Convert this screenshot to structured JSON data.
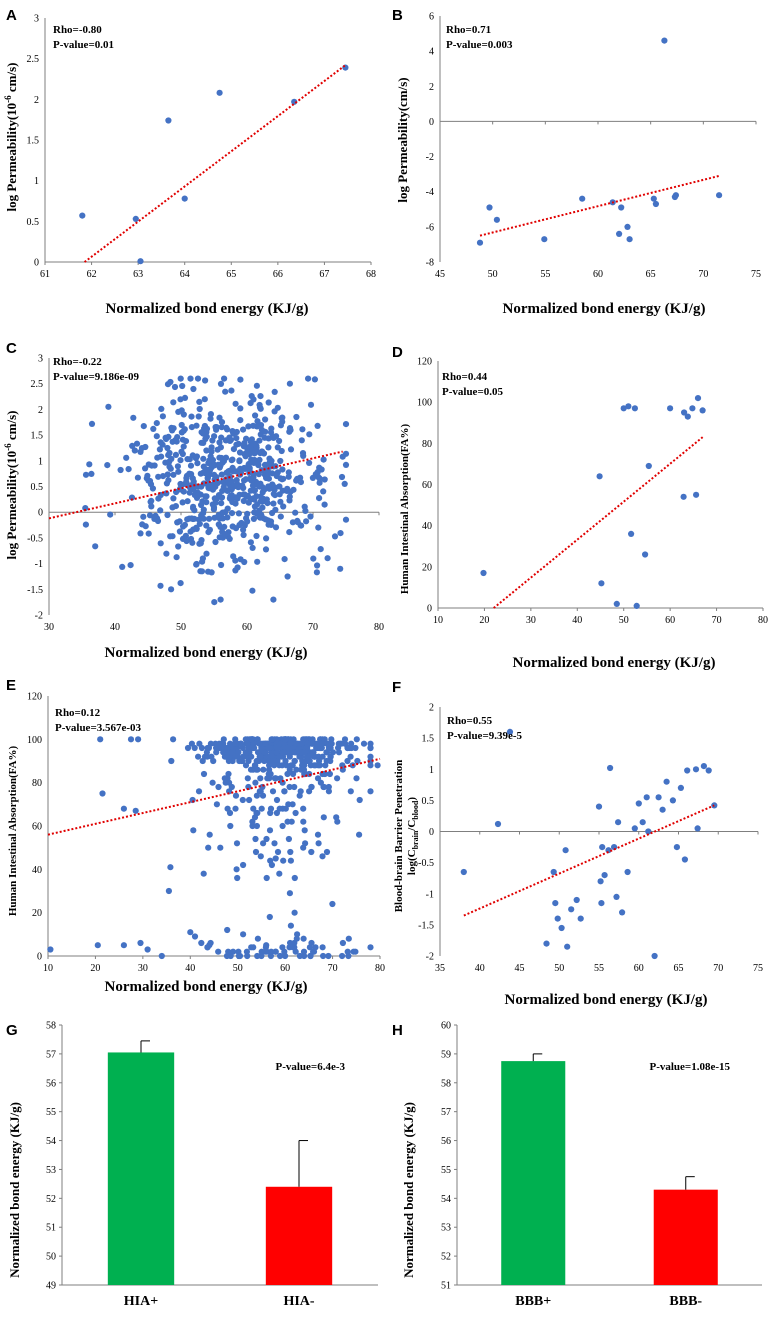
{
  "figure": {
    "panels": [
      {
        "key": "A",
        "chart_data": {
          "type": "scatter",
          "panel_label": "A",
          "xlabel": "Normalized bond energy (KJ/g)",
          "ylabel": "log Permeability(10",
          "ylabel_sup": "-6",
          "ylabel_tail": " cm/s)",
          "xlim": [
            61,
            68
          ],
          "xticks": [
            61,
            62,
            63,
            64,
            65,
            66,
            67,
            68
          ],
          "ylim": [
            0,
            3
          ],
          "yticks": [
            0,
            0.5,
            1,
            1.5,
            2,
            2.5,
            3
          ],
          "annotations": [
            "Rho=-0.80",
            "P-value=0.01"
          ],
          "points": [
            [
              61.8,
              0.57
            ],
            [
              62.95,
              0.53
            ],
            [
              63.05,
              0.01
            ],
            [
              63.65,
              1.74
            ],
            [
              64.0,
              0.78
            ],
            [
              64.75,
              2.08
            ],
            [
              66.35,
              1.97
            ],
            [
              67.45,
              2.39
            ]
          ],
          "trendline": [
            [
              61.85,
              0.0
            ],
            [
              67.45,
              2.42
            ]
          ]
        }
      },
      {
        "key": "B",
        "chart_data": {
          "type": "scatter",
          "panel_label": "B",
          "xlabel": "Normalized bond energy (KJ/g)",
          "ylabel": "log Permeability(cm/s)",
          "xlim": [
            45,
            75
          ],
          "xticks": [
            45,
            50,
            55,
            60,
            65,
            70,
            75
          ],
          "ylim": [
            -8,
            6
          ],
          "yticks": [
            -8,
            -6,
            -4,
            -2,
            0,
            2,
            4,
            6
          ],
          "annotations": [
            "Rho=0.71",
            "P-value=0.003"
          ],
          "points": [
            [
              48.8,
              -6.9
            ],
            [
              49.7,
              -4.9
            ],
            [
              50.4,
              -5.6
            ],
            [
              54.9,
              -6.7
            ],
            [
              58.5,
              -4.4
            ],
            [
              61.4,
              -4.6
            ],
            [
              62.0,
              -6.4
            ],
            [
              62.2,
              -4.9
            ],
            [
              62.8,
              -6.0
            ],
            [
              63.0,
              -6.7
            ],
            [
              65.3,
              -4.4
            ],
            [
              65.5,
              -4.7
            ],
            [
              66.3,
              4.6
            ],
            [
              67.3,
              -4.3
            ],
            [
              67.4,
              -4.2
            ],
            [
              71.5,
              -4.2
            ]
          ],
          "trendline": [
            [
              48.8,
              -6.5
            ],
            [
              71.5,
              -3.1
            ]
          ]
        }
      },
      {
        "key": "C",
        "chart_data": {
          "type": "scatter",
          "panel_label": "C",
          "xlabel": "Normalized bond energy (KJ/g)",
          "ylabel": "log Permeability(10",
          "ylabel_sup": "-6",
          "ylabel_tail": " cm/s)",
          "xlim": [
            30,
            80
          ],
          "xticks": [
            30,
            40,
            50,
            60,
            70,
            80
          ],
          "ylim": [
            -2,
            3
          ],
          "yticks": [
            -2,
            -1.5,
            -1,
            -0.5,
            0,
            0.5,
            1,
            1.5,
            2,
            2.5,
            3
          ],
          "annotations": [
            "Rho=-0.22",
            "P-value=9.186e-09"
          ],
          "point_cloud": {
            "n": 650,
            "x_center": 57,
            "x_sd": 7.5,
            "y_center": 0.65,
            "y_sd": 0.85,
            "x_range": [
              35,
              75
            ],
            "y_range": [
              -1.75,
              2.6
            ]
          },
          "points": [
            [
              59.0,
              2.58
            ],
            [
              66.5,
              2.5
            ],
            [
              39.0,
              2.05
            ],
            [
              74.8,
              0.55
            ],
            [
              74.5,
              1.08
            ],
            [
              35.5,
              0.08
            ],
            [
              48.5,
              -1.5
            ],
            [
              56.0,
              -1.7
            ],
            [
              64.0,
              -1.7
            ],
            [
              43.0,
              1.2
            ]
          ],
          "trendline": [
            [
              30.0,
              -0.12
            ],
            [
              74.5,
              1.18
            ]
          ]
        }
      },
      {
        "key": "D",
        "chart_data": {
          "type": "scatter",
          "panel_label": "D",
          "xlabel": "Normalized bond energy (KJ/g)",
          "ylabel": "Human Intestinal Absorption(FA%)",
          "xlim": [
            10,
            80
          ],
          "xticks": [
            10,
            20,
            30,
            40,
            50,
            60,
            70,
            80
          ],
          "ylim": [
            0,
            120
          ],
          "yticks": [
            0,
            20,
            40,
            60,
            80,
            100,
            120
          ],
          "annotations": [
            "Rho=0.44",
            "P-value=0.05"
          ],
          "points": [
            [
              19.8,
              17
            ],
            [
              44.8,
              64
            ],
            [
              45.2,
              12
            ],
            [
              48.5,
              2
            ],
            [
              50.0,
              97
            ],
            [
              51.0,
              98
            ],
            [
              51.6,
              36
            ],
            [
              52.4,
              97
            ],
            [
              52.8,
              1
            ],
            [
              54.6,
              26
            ],
            [
              55.4,
              69
            ],
            [
              60.0,
              97
            ],
            [
              62.9,
              54
            ],
            [
              63.0,
              95
            ],
            [
              63.8,
              93
            ],
            [
              64.8,
              97
            ],
            [
              65.6,
              55
            ],
            [
              66.0,
              102
            ],
            [
              67.0,
              96
            ]
          ],
          "trendline": [
            [
              22.0,
              0
            ],
            [
              67.0,
              83
            ]
          ]
        }
      },
      {
        "key": "E",
        "chart_data": {
          "type": "scatter",
          "panel_label": "E",
          "xlabel": "Normalized bond energy (KJ/g)",
          "ylabel": "Human Intestinal Absorption(FA%)",
          "xlim": [
            10,
            80
          ],
          "xticks": [
            10,
            20,
            30,
            40,
            50,
            60,
            70,
            80
          ],
          "ylim": [
            0,
            120
          ],
          "yticks": [
            0,
            20,
            40,
            60,
            80,
            100,
            120
          ],
          "annotations": [
            "Rho=0.12",
            "P-value=3.567e-03"
          ],
          "point_cloud": {
            "n": 560,
            "x_center": 58,
            "x_sd": 8,
            "y_center": 88,
            "y_sd": 18,
            "x_range": [
              36,
              78
            ],
            "y_range": [
              0,
              100
            ]
          },
          "points": [
            [
              10.5,
              3
            ],
            [
              20.5,
              5
            ],
            [
              21.0,
              100
            ],
            [
              21.5,
              75
            ],
            [
              26.0,
              68
            ],
            [
              27.5,
              100
            ],
            [
              28.5,
              67
            ],
            [
              29.0,
              100
            ],
            [
              29.5,
              6
            ],
            [
              31.0,
              3
            ],
            [
              34.0,
              0
            ],
            [
              35.5,
              30
            ],
            [
              35.8,
              41
            ],
            [
              26.0,
              5
            ],
            [
              40.0,
              11
            ],
            [
              41.0,
              9
            ],
            [
              44.0,
              5
            ],
            [
              48.0,
              2
            ],
            [
              52.0,
              0
            ],
            [
              56.0,
              5
            ],
            [
              60.0,
              0
            ],
            [
              64.0,
              0
            ],
            [
              68.0,
              0
            ],
            [
              72.0,
              0
            ],
            [
              62.0,
              20
            ],
            [
              61.0,
              29
            ],
            [
              58.0,
              45
            ],
            [
              79.5,
              88
            ]
          ],
          "trendline": [
            [
              10.0,
              56
            ],
            [
              80.0,
              91
            ]
          ]
        }
      },
      {
        "key": "F",
        "chart_data": {
          "type": "scatter",
          "panel_label": "F",
          "xlabel": "Normalized bond energy (KJ/g)",
          "ylabel": "Blood-brain Barrier Penetration",
          "ylabel2": "log(C",
          "ylabel2_sub1": "brain",
          "ylabel2_mid": "/C",
          "ylabel2_sub2": "blood",
          "ylabel2_tail": ")",
          "xlim": [
            35,
            75
          ],
          "xticks": [
            35,
            40,
            45,
            50,
            55,
            60,
            65,
            70,
            75
          ],
          "ylim": [
            -2,
            2
          ],
          "yticks": [
            -2,
            -1.5,
            -1,
            -0.5,
            0,
            0.5,
            1,
            1.5,
            2
          ],
          "annotations": [
            "Rho=0.55",
            "P-value=9.39e-5"
          ],
          "points": [
            [
              38.0,
              -0.65
            ],
            [
              42.3,
              0.12
            ],
            [
              48.4,
              -1.8
            ],
            [
              49.3,
              -0.65
            ],
            [
              49.5,
              -1.15
            ],
            [
              49.8,
              -1.4
            ],
            [
              50.3,
              -1.55
            ],
            [
              50.8,
              -0.3
            ],
            [
              51.0,
              -1.85
            ],
            [
              51.5,
              -1.25
            ],
            [
              52.2,
              -1.1
            ],
            [
              52.7,
              -1.4
            ],
            [
              55.0,
              0.4
            ],
            [
              55.2,
              -0.8
            ],
            [
              55.3,
              -1.15
            ],
            [
              55.4,
              -0.25
            ],
            [
              55.7,
              -0.7
            ],
            [
              56.2,
              -0.3
            ],
            [
              56.4,
              1.02
            ],
            [
              56.9,
              -0.25
            ],
            [
              57.2,
              -1.05
            ],
            [
              57.4,
              0.15
            ],
            [
              57.9,
              -1.3
            ],
            [
              58.6,
              -0.65
            ],
            [
              59.5,
              0.05
            ],
            [
              60.0,
              0.45
            ],
            [
              60.5,
              0.15
            ],
            [
              61.0,
              0.55
            ],
            [
              61.2,
              0.0
            ],
            [
              62.0,
              -2.0
            ],
            [
              62.5,
              0.55
            ],
            [
              63.0,
              0.35
            ],
            [
              63.5,
              0.8
            ],
            [
              64.3,
              0.5
            ],
            [
              64.8,
              -0.25
            ],
            [
              65.3,
              0.7
            ],
            [
              66.1,
              0.98
            ],
            [
              65.8,
              -0.45
            ],
            [
              67.2,
              1.0
            ],
            [
              67.4,
              0.05
            ],
            [
              68.2,
              1.05
            ],
            [
              68.8,
              0.98
            ],
            [
              69.5,
              0.42
            ],
            [
              43.8,
              1.6
            ]
          ],
          "trendline": [
            [
              38.0,
              -1.35
            ],
            [
              69.5,
              0.42
            ]
          ]
        }
      },
      {
        "key": "G",
        "chart_data": {
          "type": "bar",
          "panel_label": "G",
          "ylabel": "Normalized bond energy (KJ/g)",
          "categories": [
            "HIA+",
            "HIA-"
          ],
          "values": [
            57.05,
            52.4
          ],
          "errors": [
            0.4,
            1.6
          ],
          "colors": [
            "#00b050",
            "#ff0000"
          ],
          "ylim": [
            49,
            58
          ],
          "yticks": [
            49,
            50,
            51,
            52,
            53,
            54,
            55,
            56,
            57,
            58
          ],
          "annotation": "P-value=6.4e-3"
        }
      },
      {
        "key": "H",
        "chart_data": {
          "type": "bar",
          "panel_label": "H",
          "ylabel": "Normalized bond energy (KJ/g)",
          "categories": [
            "BBB+",
            "BBB-"
          ],
          "values": [
            58.75,
            54.3
          ],
          "errors": [
            0.25,
            0.45
          ],
          "colors": [
            "#00b050",
            "#ff0000"
          ],
          "ylim": [
            51,
            60
          ],
          "yticks": [
            51,
            52,
            53,
            54,
            55,
            56,
            57,
            58,
            59,
            60
          ],
          "annotation": "P-value=1.08e-15"
        }
      }
    ]
  },
  "colors": {
    "point": "#4472c4",
    "trend": "#e00000",
    "axis": "#7f7f7f"
  }
}
